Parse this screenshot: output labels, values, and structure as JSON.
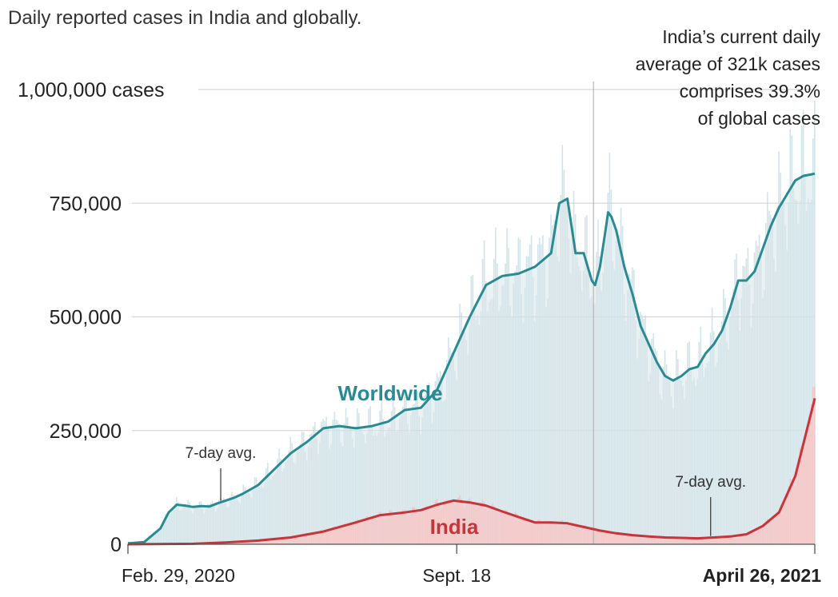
{
  "chart_data": {
    "type": "area",
    "title": "Daily reported cases in India and globally.",
    "x_ticks": [
      {
        "label": "Feb. 29, 2020",
        "day": 0
      },
      {
        "label": "Sept. 18",
        "day": 202
      },
      {
        "label": "April 26, 2021",
        "day": 422
      }
    ],
    "ylim": [
      0,
      1000000
    ],
    "y_ticks": [
      {
        "value": 0,
        "label": "0"
      },
      {
        "value": 250000,
        "label": "250,000"
      },
      {
        "value": 500000,
        "label": "500,000"
      },
      {
        "value": 750000,
        "label": "750,000"
      },
      {
        "value": 1000000,
        "label": "1,000,000 cases"
      }
    ],
    "series": [
      {
        "name": "Worldwide",
        "color": "#2a8a92",
        "fill": "#d8e6ea",
        "x": [
          0,
          10,
          20,
          25,
          30,
          35,
          40,
          45,
          50,
          55,
          60,
          65,
          70,
          80,
          90,
          100,
          110,
          120,
          130,
          140,
          150,
          160,
          170,
          180,
          190,
          200,
          210,
          220,
          230,
          240,
          250,
          255,
          260,
          265,
          270,
          275,
          280,
          285,
          287,
          290,
          293,
          295,
          297,
          300,
          305,
          310,
          315,
          320,
          325,
          330,
          335,
          340,
          345,
          350,
          355,
          360,
          365,
          370,
          375,
          380,
          385,
          390,
          395,
          400,
          405,
          410,
          415,
          422
        ],
        "values": [
          2000,
          5000,
          35000,
          70000,
          87000,
          85000,
          82000,
          84000,
          83000,
          90000,
          96000,
          102000,
          110000,
          130000,
          165000,
          200000,
          225000,
          255000,
          260000,
          255000,
          260000,
          270000,
          295000,
          300000,
          340000,
          420000,
          500000,
          570000,
          590000,
          595000,
          610000,
          625000,
          640000,
          750000,
          760000,
          640000,
          640000,
          580000,
          570000,
          610000,
          680000,
          730000,
          720000,
          690000,
          610000,
          550000,
          480000,
          440000,
          400000,
          370000,
          360000,
          370000,
          385000,
          390000,
          420000,
          440000,
          470000,
          520000,
          580000,
          580000,
          600000,
          650000,
          700000,
          740000,
          770000,
          800000,
          810000,
          815000
        ],
        "label": "Worldwide",
        "annotation": "7-day avg.",
        "annotation_day": 57
      },
      {
        "name": "India",
        "color": "#c7343a",
        "fill": "#f6cccc",
        "x": [
          0,
          40,
          60,
          80,
          100,
          120,
          140,
          155,
          170,
          180,
          190,
          200,
          210,
          220,
          230,
          240,
          250,
          260,
          270,
          280,
          290,
          300,
          310,
          320,
          330,
          340,
          350,
          360,
          370,
          380,
          390,
          400,
          410,
          422
        ],
        "values": [
          0,
          1000,
          4000,
          8000,
          15000,
          28000,
          48000,
          64000,
          70000,
          75000,
          87000,
          96000,
          92000,
          85000,
          72000,
          60000,
          48000,
          48000,
          46000,
          38000,
          30000,
          24000,
          20000,
          17000,
          15000,
          14000,
          13000,
          15000,
          17000,
          22000,
          40000,
          70000,
          150000,
          321000
        ],
        "label": "India",
        "annotation": "7-day avg.",
        "annotation_day": 358
      }
    ],
    "callout": {
      "day": 286,
      "lines": [
        "India’s current daily",
        "average of 321k cases",
        "comprises 39.3%",
        "of global cases"
      ]
    }
  }
}
